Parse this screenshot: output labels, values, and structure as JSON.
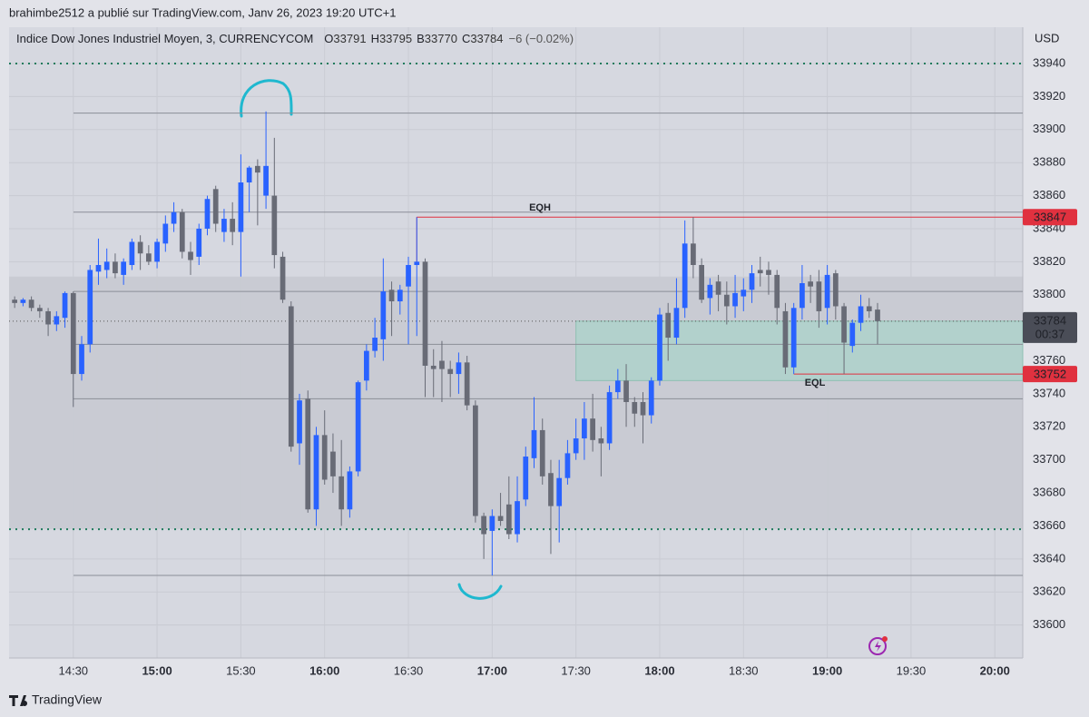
{
  "header": "brahimbe2512 a publié sur TradingView.com, Janv 26, 2023 19:20 UTC+1",
  "footer": "TradingView",
  "chart_data": {
    "type": "candlestick",
    "symbol": "Indice Dow Jones Industriel Moyen, 3, CURRENCYCOM",
    "ohlc_labels": [
      "O",
      "H",
      "B",
      "C"
    ],
    "change": "−6 (−0.02%)",
    "axis_unit": "USD",
    "countdown": "00:37",
    "x": [
      "14:09",
      "14:12",
      "14:15",
      "14:18",
      "14:21",
      "14:24",
      "14:27",
      "14:30",
      "14:33",
      "14:36",
      "14:39",
      "14:42",
      "14:45",
      "14:48",
      "14:51",
      "14:54",
      "14:57",
      "15:00",
      "15:03",
      "15:06",
      "15:09",
      "15:12",
      "15:15",
      "15:18",
      "15:21",
      "15:24",
      "15:27",
      "15:30",
      "15:33",
      "15:36",
      "15:39",
      "15:42",
      "15:45",
      "15:48",
      "15:51",
      "15:54",
      "15:57",
      "16:00",
      "16:03",
      "16:06",
      "16:09",
      "16:12",
      "16:15",
      "16:18",
      "16:21",
      "16:24",
      "16:27",
      "16:30",
      "16:33",
      "16:36",
      "16:39",
      "16:42",
      "16:45",
      "16:48",
      "16:51",
      "16:54",
      "16:57",
      "17:00",
      "17:03",
      "17:06",
      "17:09",
      "17:12",
      "17:15",
      "17:18",
      "17:21",
      "17:24",
      "17:27",
      "17:30",
      "17:33",
      "17:36",
      "17:39",
      "17:42",
      "17:45",
      "17:48",
      "17:51",
      "17:54",
      "17:57",
      "18:00",
      "18:03",
      "18:06",
      "18:09",
      "18:12",
      "18:15",
      "18:18",
      "18:21",
      "18:24",
      "18:27",
      "18:30",
      "18:33",
      "18:36",
      "18:39",
      "18:42",
      "18:45",
      "18:48",
      "18:51",
      "18:54",
      "18:57",
      "19:00",
      "19:03",
      "19:06",
      "19:09",
      "19:12",
      "19:15",
      "19:18"
    ],
    "open": [
      33797,
      33795,
      33797,
      33792,
      33790,
      33782,
      33786,
      33801,
      33752,
      33770,
      33814,
      33815,
      33820,
      33812,
      33818,
      33832,
      33825,
      33820,
      33831,
      33843,
      33850,
      33826,
      33823,
      33840,
      33864,
      33838,
      33846,
      33838,
      33868,
      33878,
      33860,
      33860,
      33823,
      33793,
      33710,
      33737,
      33670,
      33715,
      33705,
      33690,
      33670,
      33693,
      33748,
      33766,
      33773,
      33803,
      33796,
      33805,
      33818,
      33820,
      33757,
      33760,
      33755,
      33752,
      33759,
      33733,
      33666,
      33657,
      33666,
      33673,
      33655,
      33676,
      33701,
      33718,
      33692,
      33672,
      33689,
      33704,
      33713,
      33725,
      33713,
      33710,
      33741,
      33748,
      33735,
      33735,
      33727,
      33748,
      33789,
      33774,
      33792,
      33831,
      33818,
      33798,
      33808,
      33800,
      33793,
      33799,
      33803,
      33815,
      33815,
      33812,
      33790,
      33756,
      33792,
      33808,
      33808,
      33792,
      33813,
      33793,
      33769,
      33783,
      33793,
      33791
    ],
    "high": [
      33799,
      33798,
      33799,
      33794,
      33792,
      33790,
      33802,
      33802,
      33775,
      33818,
      33834,
      33828,
      33825,
      33822,
      33834,
      33836,
      33830,
      33834,
      33848,
      33856,
      33852,
      33832,
      33843,
      33860,
      33866,
      33852,
      33856,
      33885,
      33878,
      33882,
      33911,
      33895,
      33826,
      33796,
      33740,
      33742,
      33720,
      33730,
      33716,
      33712,
      33696,
      33748,
      33770,
      33786,
      33822,
      33808,
      33806,
      33823,
      33847,
      33822,
      33767,
      33772,
      33760,
      33765,
      33763,
      33736,
      33668,
      33670,
      33680,
      33690,
      33690,
      33708,
      33738,
      33725,
      33700,
      33700,
      33712,
      33725,
      33735,
      33740,
      33720,
      33745,
      33755,
      33758,
      33738,
      33741,
      33750,
      33792,
      33795,
      33810,
      33845,
      33847,
      33822,
      33810,
      33812,
      33808,
      33812,
      33810,
      33818,
      33823,
      33820,
      33815,
      33795,
      33795,
      33818,
      33812,
      33815,
      33818,
      33815,
      33795,
      33785,
      33800,
      33798,
      33795
    ],
    "low": [
      33792,
      33793,
      33790,
      33786,
      33775,
      33778,
      33780,
      33732,
      33748,
      33765,
      33806,
      33810,
      33810,
      33806,
      33815,
      33815,
      33818,
      33816,
      33826,
      33838,
      33822,
      33812,
      33818,
      33836,
      33838,
      33832,
      33830,
      33811,
      33850,
      33842,
      33852,
      33816,
      33795,
      33705,
      33697,
      33668,
      33660,
      33685,
      33680,
      33660,
      33665,
      33690,
      33742,
      33762,
      33760,
      33775,
      33788,
      33770,
      33775,
      33738,
      33738,
      33735,
      33738,
      33740,
      33730,
      33662,
      33640,
      33630,
      33660,
      33652,
      33650,
      33672,
      33695,
      33685,
      33643,
      33650,
      33685,
      33700,
      33700,
      33705,
      33690,
      33706,
      33737,
      33720,
      33720,
      33710,
      33722,
      33745,
      33760,
      33770,
      33786,
      33810,
      33795,
      33788,
      33790,
      33782,
      33786,
      33790,
      33795,
      33805,
      33800,
      33782,
      33752,
      33752,
      33785,
      33795,
      33780,
      33782,
      33785,
      33752,
      33765,
      33778,
      33786,
      33770
    ],
    "close": [
      33795,
      33797,
      33792,
      33790,
      33782,
      33787,
      33801,
      33752,
      33770,
      33815,
      33818,
      33820,
      33813,
      33820,
      33832,
      33825,
      33820,
      33832,
      33843,
      33850,
      33826,
      33821,
      33840,
      33858,
      33843,
      33846,
      33838,
      33868,
      33877,
      33874,
      33878,
      33824,
      33797,
      33708,
      33736,
      33670,
      33715,
      33688,
      33690,
      33670,
      33693,
      33747,
      33766,
      33774,
      33802,
      33796,
      33803,
      33818,
      33820,
      33757,
      33755,
      33755,
      33752,
      33759,
      33733,
      33666,
      33655,
      33666,
      33663,
      33655,
      33675,
      33702,
      33718,
      33690,
      33672,
      33689,
      33704,
      33713,
      33725,
      33712,
      33710,
      33741,
      33748,
      33735,
      33728,
      33727,
      33748,
      33788,
      33774,
      33792,
      33831,
      33818,
      33797,
      33806,
      33800,
      33793,
      33801,
      33803,
      33813,
      33813,
      33812,
      33792,
      33756,
      33792,
      33807,
      33805,
      33790,
      33812,
      33793,
      33771,
      33783,
      33793,
      33790,
      33784
    ],
    "up_color": "#2962ff",
    "down_color": "#686b76",
    "xlim": [
      "14:07",
      "20:10"
    ],
    "xticks": [
      "14:30",
      "15:00",
      "15:30",
      "16:00",
      "16:30",
      "17:00",
      "17:30",
      "18:00",
      "18:30",
      "19:00",
      "19:30",
      "20:00"
    ],
    "ylim": [
      33580,
      33962
    ],
    "yticks": [
      33600,
      33620,
      33640,
      33660,
      33680,
      33700,
      33720,
      33740,
      33760,
      33780,
      33800,
      33820,
      33840,
      33860,
      33880,
      33900,
      33920,
      33940
    ],
    "grid": true,
    "levels": [
      33910,
      33850,
      33802,
      33770,
      33737,
      33630
    ],
    "level_color": "#8b8e97",
    "dotted_levels": [
      33940,
      33658
    ],
    "dotted_color": "#1e7a5c",
    "eqh": {
      "label": "EQH",
      "value": 33847,
      "from": "16:33",
      "color": "#e0313f"
    },
    "eql": {
      "label": "EQL",
      "value": 33752,
      "from": "18:48",
      "color": "#e0313f"
    },
    "zone": {
      "from": "17:30",
      "top": 33784,
      "bottom": 33748,
      "color": "#a9d3c9"
    },
    "band": {
      "top": 33811,
      "bottom": 33658,
      "color": "#c9cbd3"
    }
  }
}
